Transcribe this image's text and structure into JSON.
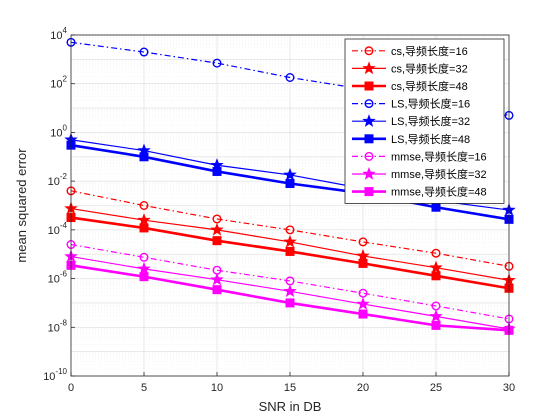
{
  "chart_data": {
    "type": "line",
    "title": "",
    "xlabel": "SNR in DB",
    "ylabel": "mean squared error",
    "yscale": "log",
    "xlim": [
      0,
      30
    ],
    "ylim": [
      1e-10,
      10000
    ],
    "x": [
      0,
      5,
      10,
      15,
      20,
      25,
      30
    ],
    "x_ticks": [
      "0",
      "5",
      "10",
      "15",
      "20",
      "25",
      "30"
    ],
    "y_ticks": [
      {
        "base": "10",
        "exp": "4",
        "value": 10000
      },
      {
        "base": "10",
        "exp": "2",
        "value": 100
      },
      {
        "base": "10",
        "exp": "0",
        "value": 1
      },
      {
        "base": "10",
        "exp": "-2",
        "value": 0.01
      },
      {
        "base": "10",
        "exp": "-4",
        "value": 0.0001
      },
      {
        "base": "10",
        "exp": "-6",
        "value": 1e-06
      },
      {
        "base": "10",
        "exp": "-8",
        "value": 1e-08
      },
      {
        "base": "10",
        "exp": "-10",
        "value": 1e-10
      }
    ],
    "grid": true,
    "minor_grid": true,
    "legend_position": "top-right",
    "series": [
      {
        "name": "cs,导频长度=16",
        "color": "#ff0000",
        "marker": "circle",
        "line": "dashdot",
        "width": 1.2,
        "values": [
          0.004,
          0.001,
          0.00028,
          0.0001,
          3.2e-05,
          1.1e-05,
          3.2e-06
        ]
      },
      {
        "name": "cs,导频长度=32",
        "color": "#ff0000",
        "marker": "star",
        "line": "solid",
        "width": 1.2,
        "values": [
          0.00075,
          0.00025,
          0.0001,
          3.2e-05,
          8.5e-06,
          2.8e-06,
          8.5e-07
        ]
      },
      {
        "name": "cs,导频长度=48",
        "color": "#ff0000",
        "marker": "square",
        "line": "solid",
        "width": 2.6,
        "values": [
          0.00032,
          0.00012,
          3.6e-05,
          1.3e-05,
          4.2e-06,
          1.3e-06,
          4e-07
        ]
      },
      {
        "name": "LS,导频长度=16",
        "color": "#0000ff",
        "marker": "circle",
        "line": "dashdot",
        "width": 1.2,
        "values": [
          5000,
          2000,
          700,
          180,
          60,
          20,
          5
        ]
      },
      {
        "name": "LS,导频长度=32",
        "color": "#0000ff",
        "marker": "star",
        "line": "solid",
        "width": 1.2,
        "values": [
          0.5,
          0.18,
          0.045,
          0.018,
          0.005,
          0.0016,
          0.00065
        ]
      },
      {
        "name": "LS,导频长度=48",
        "color": "#0000ff",
        "marker": "square",
        "line": "solid",
        "width": 2.6,
        "values": [
          0.3,
          0.1,
          0.025,
          0.008,
          0.0032,
          0.00085,
          0.00027
        ]
      },
      {
        "name": "mmse,导频长度=16",
        "color": "#ff00ff",
        "marker": "circle",
        "line": "dashdot",
        "width": 1.2,
        "values": [
          2.5e-05,
          7.5e-06,
          2.2e-06,
          8e-07,
          2.5e-07,
          7.5e-08,
          2.2e-08
        ]
      },
      {
        "name": "mmse,导频长度=32",
        "color": "#ff00ff",
        "marker": "star",
        "line": "solid",
        "width": 1.2,
        "values": [
          8e-06,
          2.5e-06,
          9e-07,
          3e-07,
          9e-08,
          2.8e-08,
          8.5e-09
        ]
      },
      {
        "name": "mmse,导频长度=48",
        "color": "#ff00ff",
        "marker": "square",
        "line": "solid",
        "width": 2.6,
        "values": [
          3.5e-06,
          1.2e-06,
          3.5e-07,
          1e-07,
          3.5e-08,
          1.2e-08,
          7.5e-09
        ]
      }
    ]
  }
}
